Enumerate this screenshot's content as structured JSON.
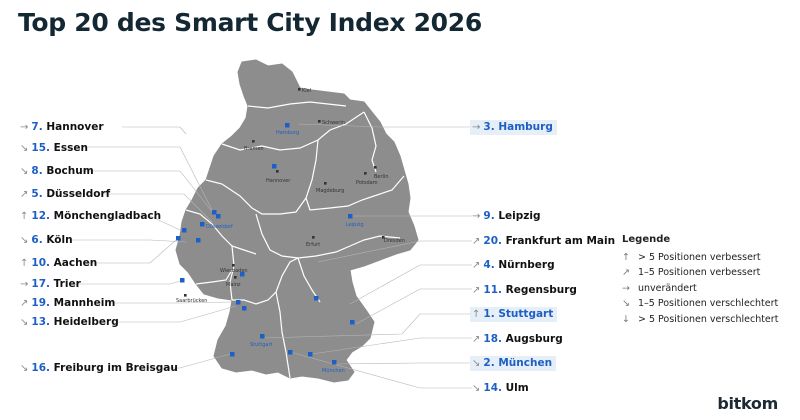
{
  "title": "Top 20 des Smart City Index 2026",
  "logo": "bitkom",
  "colors": {
    "accent": "#1d5fc4",
    "land": "#8d8d8d",
    "border": "#ffffff",
    "highlight_bg": "#e6eef8"
  },
  "left_ranks": [
    {
      "arrow": "→",
      "num": "7.",
      "name": "Hannover"
    },
    {
      "arrow": "↘",
      "num": "15.",
      "name": "Essen"
    },
    {
      "arrow": "↘",
      "num": "8.",
      "name": "Bochum"
    },
    {
      "arrow": "↗",
      "num": "5.",
      "name": "Düsseldorf"
    },
    {
      "arrow": "↑",
      "num": "12.",
      "name": "Mönchengladbach"
    },
    {
      "arrow": "↘",
      "num": "6.",
      "name": "Köln"
    },
    {
      "arrow": "↑",
      "num": "10.",
      "name": "Aachen"
    },
    {
      "arrow": "→",
      "num": "17.",
      "name": "Trier"
    },
    {
      "arrow": "↗",
      "num": "19.",
      "name": "Mannheim"
    },
    {
      "arrow": "↘",
      "num": "13.",
      "name": "Heidelberg"
    },
    {
      "arrow": "↘",
      "num": "16.",
      "name": "Freiburg im Breisgau"
    }
  ],
  "right_ranks": [
    {
      "arrow": "→",
      "num": "3.",
      "name": "Hamburg",
      "highlight": true
    },
    {
      "arrow": "→",
      "num": "9.",
      "name": "Leipzig"
    },
    {
      "arrow": "↗",
      "num": "20.",
      "name": "Frankfurt am Main"
    },
    {
      "arrow": "↗",
      "num": "4.",
      "name": "Nürnberg"
    },
    {
      "arrow": "↗",
      "num": "11.",
      "name": "Regensburg"
    },
    {
      "arrow": "↑",
      "num": "1.",
      "name": "Stuttgart",
      "highlight": true
    },
    {
      "arrow": "↗",
      "num": "18.",
      "name": "Augsburg"
    },
    {
      "arrow": "↘",
      "num": "2.",
      "name": "München",
      "highlight": true
    },
    {
      "arrow": "↘",
      "num": "14.",
      "name": "Ulm"
    }
  ],
  "legend": {
    "title": "Legende",
    "items": [
      {
        "arrow": "↑",
        "label": "> 5 Positionen verbessert"
      },
      {
        "arrow": "↗",
        "label": "1–5 Positionen verbessert"
      },
      {
        "arrow": "→",
        "label": "unverändert"
      },
      {
        "arrow": "↘",
        "label": "1–5 Positionen verschlechtert"
      },
      {
        "arrow": "↓",
        "label": "> 5 Positionen verschlechtert"
      }
    ]
  },
  "map_labels": {
    "capitals": [
      "Kiel",
      "Schwerin",
      "Bremen",
      "Hannover",
      "Berlin",
      "Potsdam",
      "Magdeburg",
      "Erfurt",
      "Dresden",
      "Wiesbaden",
      "Mainz",
      "Saarbrücken"
    ],
    "highlighted": [
      "Hamburg",
      "Düsseldorf",
      "Leipzig",
      "Stuttgart",
      "München"
    ]
  }
}
